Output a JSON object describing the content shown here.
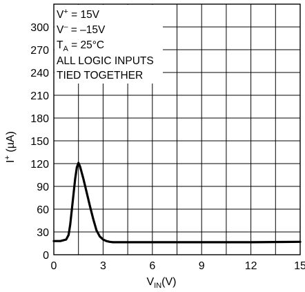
{
  "chart_data": {
    "type": "line",
    "x_axis": {
      "label_main": "V",
      "label_sub": "IN",
      "label_unit": "(V)",
      "range": [
        0,
        15
      ],
      "ticks": [
        "0",
        "3",
        "6",
        "9",
        "12",
        "15"
      ],
      "grid_step": 1.5
    },
    "y_axis": {
      "label_main": "I",
      "label_sup": "+",
      "label_unit": " (µA)",
      "range": [
        0,
        330
      ],
      "ticks": [
        "0",
        "30",
        "60",
        "90",
        "120",
        "150",
        "180",
        "210",
        "240",
        "270",
        "300"
      ],
      "grid_step": 30
    },
    "grid": true,
    "annotation": {
      "line1_main": "V",
      "line1_sup": "+",
      "line1_rest": " = 15V",
      "line2_main": "V",
      "line2_sup": "–",
      "line2_rest": " = –15V",
      "line3_main": "T",
      "line3_sub": "A",
      "line3_rest": " = 25°C",
      "line4": "ALL LOGIC INPUTS",
      "line5": "TIED TOGETHER"
    },
    "series": [
      {
        "x": [
          0,
          0.4,
          0.75,
          0.9,
          1.0,
          1.1,
          1.2,
          1.3,
          1.4,
          1.5,
          1.6,
          1.8,
          2.0,
          2.2,
          2.4,
          2.6,
          2.8,
          3.0,
          3.2,
          3.4,
          3.6,
          4,
          5,
          6,
          8,
          10,
          12,
          14,
          15
        ],
        "y": [
          18,
          18,
          20,
          26,
          40,
          60,
          80,
          100,
          115,
          121,
          116,
          100,
          82,
          64,
          47,
          32,
          24,
          20,
          18,
          17,
          16.5,
          16.5,
          16.5,
          16.5,
          16.5,
          16.5,
          16.5,
          16.8,
          17
        ]
      }
    ]
  }
}
